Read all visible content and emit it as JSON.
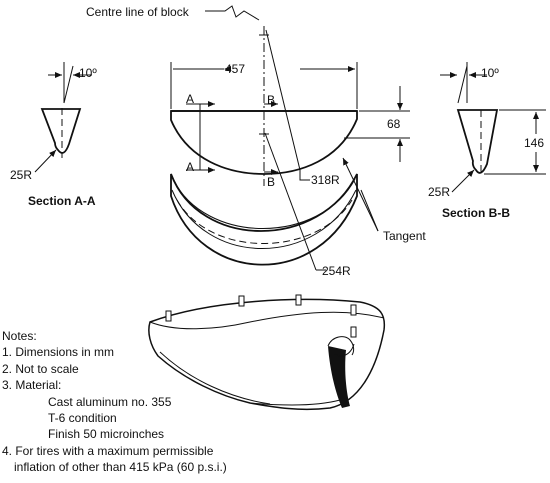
{
  "labels": {
    "centre_line": "Centre line of block",
    "dim_width": "457",
    "dim_height": "68",
    "dim_section_height": "146",
    "radius_inner": "318R",
    "radius_outer": "254R",
    "radius_tip_a": "25R",
    "radius_tip_b": "25R",
    "angle_a": "10º",
    "angle_b": "10º",
    "tangent": "Tangent",
    "section_a": "Section A-A",
    "section_b": "Section B-B",
    "marker_a_top": "A",
    "marker_a_bottom": "A",
    "marker_b_top": "B",
    "marker_b_bottom": "B"
  },
  "notes": {
    "heading": "Notes:",
    "n1": "1. Dimensions in mm",
    "n2": "2. Not to scale",
    "n3": "3. Material:",
    "m1": "Cast aluminum no. 355",
    "m2": "T-6 condition",
    "m3": "Finish 50 microinches",
    "n4a": "4. For tires with a maximum permissible",
    "n4b": "inflation of other than 415 kPa (60 p.s.i.)"
  }
}
